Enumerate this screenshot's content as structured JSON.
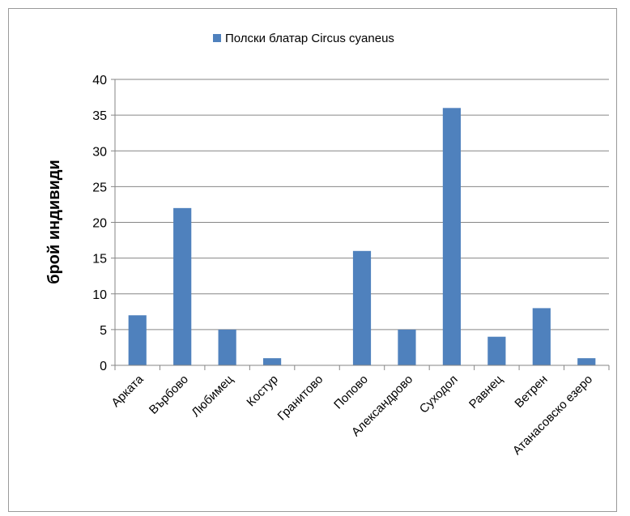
{
  "chart_data": {
    "type": "bar",
    "title": "",
    "xlabel": "",
    "ylabel": "брой индивиди",
    "ylim": [
      0,
      40
    ],
    "yticks": [
      0,
      5,
      10,
      15,
      20,
      25,
      30,
      35,
      40
    ],
    "grid": true,
    "legend_position": "top",
    "categories": [
      "Арката",
      "Върбово",
      "Любимец",
      "Костур",
      "Гранитово",
      "Попово",
      "Александрово",
      "Суходол",
      "Равнец",
      "Ветрен",
      "Атанасовско езеро"
    ],
    "series": [
      {
        "name": "Полски блатар Circus cyaneus",
        "color": "#4F81BD",
        "values": [
          7,
          22,
          5,
          1,
          0,
          16,
          5,
          36,
          4,
          8,
          1
        ]
      }
    ]
  }
}
